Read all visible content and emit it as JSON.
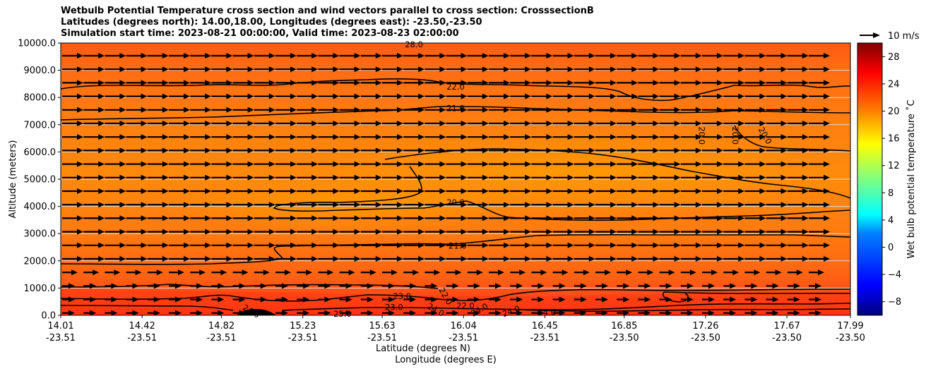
{
  "title_lines": [
    "Wetbulb Potential Temperature cross section and wind vectors parallel to cross section: CrosssectionB",
    "Latitudes (degrees north): 14.00,18.00, Longitudes (degrees east): -23.50,-23.50",
    "Simulation start time: 2023-08-21 00:00:00, Valid time: 2023-08-23 02:00:00"
  ],
  "chart_data": {
    "type": "contour-cross-section",
    "title": "Wetbulb Potential Temperature cross section and wind vectors parallel to cross section: CrosssectionB",
    "ylabel": "Altitude (meters)",
    "xlabel_lines": [
      "Latitude (degrees N)",
      "Longitude (degrees E)"
    ],
    "ylim": [
      0,
      10000
    ],
    "xlim": [
      14.01,
      17.99
    ],
    "y_ticks": [
      "0.0",
      "1000.0",
      "2000.0",
      "3000.0",
      "4000.0",
      "5000.0",
      "6000.0",
      "7000.0",
      "8000.0",
      "9000.0",
      "10000.0"
    ],
    "x_ticks": [
      {
        "lat": "14.01",
        "lon": "-23.51"
      },
      {
        "lat": "14.42",
        "lon": "-23.51"
      },
      {
        "lat": "14.82",
        "lon": "-23.51"
      },
      {
        "lat": "15.23",
        "lon": "-23.51"
      },
      {
        "lat": "15.63",
        "lon": "-23.51"
      },
      {
        "lat": "16.04",
        "lon": "-23.51"
      },
      {
        "lat": "16.45",
        "lon": "-23.51"
      },
      {
        "lat": "16.85",
        "lon": "-23.50"
      },
      {
        "lat": "17.26",
        "lon": "-23.50"
      },
      {
        "lat": "17.67",
        "lon": "-23.50"
      },
      {
        "lat": "17.99",
        "lon": "-23.50"
      }
    ],
    "colorbar": {
      "label": "Wet bulb potential temperature $^\\circ$C",
      "label_display": "Wet bulb potential temperature ˚C",
      "range": [
        -10,
        30
      ],
      "ticks": [
        "28",
        "24",
        "20",
        "16",
        "12",
        "8",
        "4",
        "0",
        "−4",
        "−8"
      ],
      "colors": [
        "#00007f",
        "#0000ff",
        "#007fff",
        "#00ffff",
        "#7fff7f",
        "#ffff00",
        "#ff7f00",
        "#ff0000",
        "#7f0000"
      ]
    },
    "wind_key": "10 m/s",
    "contours": [
      {
        "level": "20.0",
        "label": "20.0"
      },
      {
        "level": "21.0",
        "label": "21.0"
      },
      {
        "level": "22.0",
        "label": "22.0"
      },
      {
        "level": "23.0",
        "label": "23.0"
      },
      {
        "level": "24.0",
        "label": "24.0"
      },
      {
        "level": "25.0",
        "label": "25.0"
      }
    ],
    "contour_labels": [
      {
        "text": "22.0",
        "lat": 16.0,
        "alt": 8400
      },
      {
        "text": "21.0",
        "lat": 16.0,
        "alt": 7600
      },
      {
        "text": "20.0",
        "lat": 17.24,
        "alt": 6600,
        "rot": 90
      },
      {
        "text": "20.0",
        "lat": 17.41,
        "alt": 6600,
        "rot": 90
      },
      {
        "text": "20.0",
        "lat": 17.56,
        "alt": 6600,
        "rot": 60
      },
      {
        "text": "20.0",
        "lat": 16.0,
        "alt": 4150
      },
      {
        "text": "21.0",
        "lat": 16.01,
        "alt": 2550
      },
      {
        "text": "23.0",
        "lat": 15.73,
        "alt": 700
      },
      {
        "text": "23.0",
        "lat": 15.69,
        "alt": 300
      },
      {
        "text": "22.0",
        "lat": 15.95,
        "alt": 700,
        "rot": 60
      },
      {
        "text": "22.0",
        "lat": 16.05,
        "alt": 350
      },
      {
        "text": "24.0",
        "lat": 14.97,
        "alt": 150,
        "rot": 30
      },
      {
        "text": "25.0",
        "lat": 15.43,
        "alt": 50
      },
      {
        "text": "24.0",
        "lat": 15.9,
        "alt": 200,
        "rot": 30
      },
      {
        "text": "24.0",
        "lat": 16.12,
        "alt": 200,
        "rot": -30
      },
      {
        "text": "24.0",
        "lat": 16.28,
        "alt": 150,
        "rot": -20
      },
      {
        "text": "24.0",
        "lat": 16.46,
        "alt": 100
      },
      {
        "text": "28.0",
        "lat": 15.79,
        "alt": 9950
      }
    ]
  }
}
